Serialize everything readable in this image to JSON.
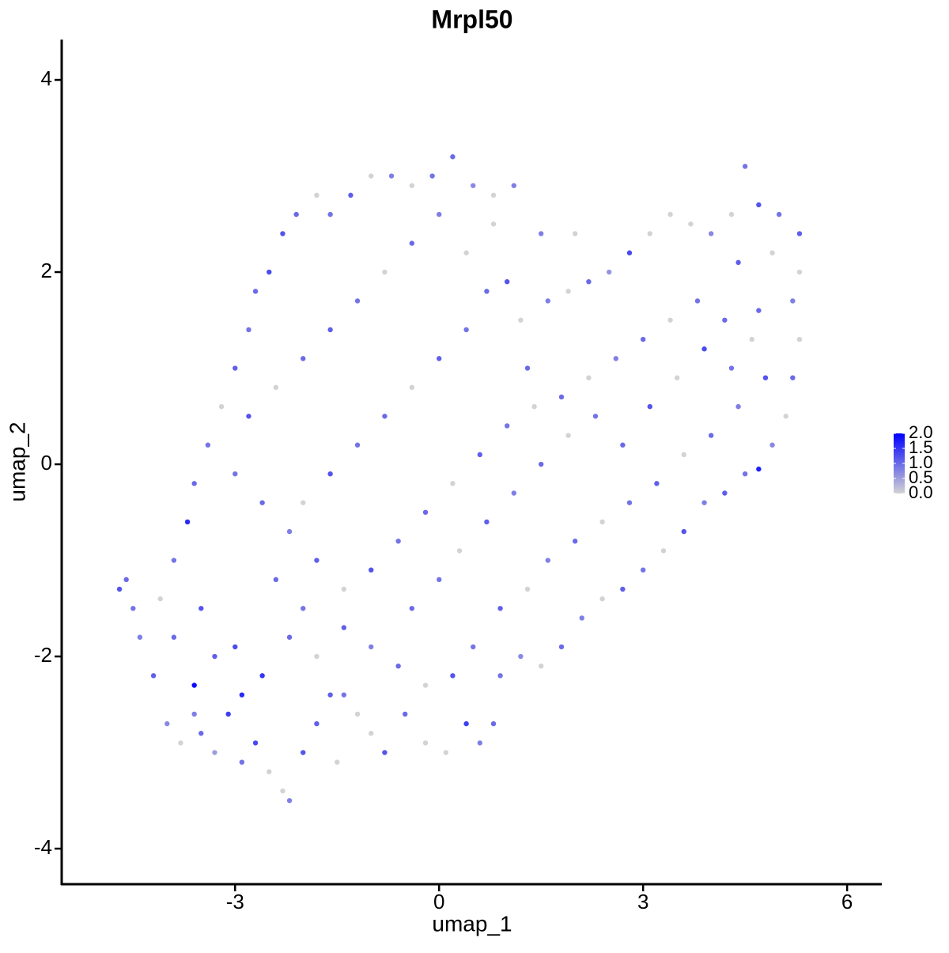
{
  "chart_data": {
    "type": "scatter",
    "title": "Mrpl50",
    "x_label": "umap_1",
    "y_label": "umap_2",
    "xlim": [
      -5.55,
      6.51
    ],
    "ylim": [
      -4.37,
      4.42
    ],
    "xticks": [
      -3,
      0,
      3,
      6
    ],
    "yticks": [
      -4,
      -2,
      0,
      2,
      4
    ],
    "grid": false,
    "color_low": "#D3D3D3",
    "color_high": "#0000FF",
    "clim": [
      0,
      2
    ],
    "colorbar_ticks": [
      {
        "value": 0,
        "label": "0.0"
      },
      0.5,
      {
        "value": 1,
        "label": "1.0"
      },
      1.5,
      {
        "value": 2,
        "label": "2.0"
      }
    ],
    "x": [
      -4.7,
      -4.6,
      -4.5,
      -4.4,
      -4.2,
      -4.0,
      -3.8,
      -3.6,
      -3.5,
      -3.3,
      -3.1,
      -2.9,
      -2.7,
      -2.5,
      -2.3,
      -2.2,
      -2.0,
      -1.8,
      -1.5,
      -1.4,
      -1.0,
      -0.8,
      -0.5,
      -0.2,
      0.1,
      0.4,
      0.6,
      0.8,
      0.9,
      1.2,
      1.5,
      1.8,
      2.1,
      2.4,
      2.7,
      3.0,
      3.3,
      3.6,
      3.9,
      4.2,
      4.5,
      4.7,
      4.9,
      5.1,
      5.2,
      5.3,
      5.2,
      5.3,
      5.3,
      5.0,
      4.7,
      4.5,
      4.3,
      4.0,
      3.7,
      3.4,
      3.1,
      2.8,
      2.5,
      2.2,
      1.9,
      1.6,
      1.2,
      1.0,
      0.8,
      1.1,
      0.8,
      0.5,
      0.2,
      -0.1,
      -0.4,
      -0.7,
      -1.0,
      -1.3,
      -1.6,
      -1.8,
      -2.1,
      -2.3,
      -2.5,
      -2.7,
      -2.8,
      -3.0,
      -3.2,
      -3.4,
      -3.6,
      -3.7,
      -3.9,
      -4.1,
      -3.9,
      -3.5,
      -3.0,
      -2.6,
      -2.2,
      -1.8,
      -1.4,
      -1.0,
      -0.6,
      -0.2,
      0.2,
      0.5,
      0.9,
      1.3,
      1.6,
      2.0,
      2.4,
      2.8,
      3.2,
      3.6,
      4.0,
      4.4,
      4.8,
      4.6,
      4.2,
      3.8,
      3.4,
      3.0,
      2.6,
      2.2,
      1.8,
      1.4,
      1.0,
      0.6,
      0.2,
      -0.2,
      -0.6,
      -1.0,
      -1.4,
      -1.8,
      -2.2,
      -2.6,
      -3.0,
      -2.8,
      -2.4,
      -2.0,
      -1.6,
      -1.2,
      -0.8,
      -0.4,
      0.0,
      0.4,
      0.7,
      0.4,
      0.0,
      -0.4,
      -0.8,
      -1.2,
      -1.6,
      -2.0,
      -2.4,
      -2.0,
      -1.6,
      -1.2,
      -0.4,
      0.0,
      0.3,
      0.7,
      1.1,
      1.5,
      1.9,
      2.3,
      2.7,
      3.1,
      3.5,
      3.9,
      4.3,
      4.7,
      4.9,
      4.4,
      2.0,
      1.5,
      1.3,
      -3.3,
      -2.9,
      -3.6
    ],
    "y": [
      -1.3,
      -1.2,
      -1.5,
      -1.8,
      -2.2,
      -2.7,
      -2.9,
      -2.3,
      -2.8,
      -3.0,
      -2.6,
      -3.1,
      -2.9,
      -3.2,
      -3.4,
      -3.5,
      -3.0,
      -2.7,
      -3.1,
      -2.4,
      -2.8,
      -3.0,
      -2.6,
      -2.9,
      -3.0,
      -2.7,
      -2.9,
      -2.7,
      -2.2,
      -2.0,
      -2.1,
      -1.9,
      -1.6,
      -1.4,
      -1.3,
      -1.1,
      -0.9,
      -0.7,
      -0.4,
      -0.3,
      -0.1,
      -0.05,
      0.2,
      0.5,
      0.9,
      1.3,
      1.7,
      2.0,
      2.4,
      2.6,
      2.7,
      3.1,
      2.6,
      2.4,
      2.5,
      2.6,
      2.4,
      2.2,
      2.0,
      1.9,
      1.8,
      1.7,
      1.5,
      1.9,
      2.5,
      2.9,
      2.8,
      2.9,
      3.2,
      3.0,
      2.9,
      3.0,
      3.0,
      2.8,
      2.6,
      2.8,
      2.6,
      2.4,
      2.0,
      1.8,
      1.4,
      1.0,
      0.6,
      0.2,
      -0.2,
      -0.6,
      -1.0,
      -1.4,
      -1.8,
      -1.5,
      -1.9,
      -2.2,
      -1.8,
      -2.0,
      -1.7,
      -1.9,
      -2.1,
      -2.3,
      -2.2,
      -1.9,
      -1.5,
      -1.3,
      -1.0,
      -0.8,
      -0.6,
      -0.4,
      -0.2,
      0.1,
      0.3,
      0.6,
      0.9,
      1.3,
      1.5,
      1.7,
      1.5,
      1.3,
      1.1,
      0.9,
      0.7,
      0.6,
      0.4,
      0.1,
      -0.2,
      -0.5,
      -0.8,
      -1.1,
      -1.3,
      -1.0,
      -0.7,
      -0.4,
      -0.1,
      0.5,
      0.8,
      1.1,
      1.4,
      1.7,
      2.0,
      2.3,
      2.6,
      2.2,
      1.8,
      1.4,
      1.1,
      0.8,
      0.5,
      0.2,
      -0.1,
      -0.4,
      -1.2,
      -1.5,
      -2.4,
      -2.6,
      -1.5,
      -1.2,
      -0.9,
      -0.6,
      -0.3,
      0.0,
      0.3,
      0.5,
      0.2,
      0.6,
      0.9,
      1.2,
      1.0,
      1.6,
      2.2,
      2.1,
      2.4,
      2.4,
      1.0,
      -2.0,
      -2.4,
      -2.6
    ],
    "values": [
      1.2,
      1.0,
      0.9,
      0.8,
      1.1,
      0.7,
      0,
      1.9,
      1.0,
      0.5,
      1.4,
      0.9,
      1.3,
      0,
      0,
      0.8,
      1.2,
      1.1,
      0,
      0.9,
      0,
      1.2,
      1.0,
      0,
      0,
      1.4,
      0.8,
      1.0,
      0.9,
      0.7,
      0,
      1.0,
      0.8,
      0,
      1.1,
      0.9,
      0,
      1.2,
      0.8,
      1.1,
      0.9,
      1.7,
      0.7,
      0,
      1.0,
      0,
      0.8,
      0,
      1.1,
      0.9,
      1.2,
      0.9,
      0,
      0.7,
      0,
      0,
      0,
      1.3,
      0.6,
      1.0,
      0,
      0.8,
      0,
      1.2,
      0,
      0.8,
      0,
      0.7,
      1.0,
      0.9,
      0,
      0.8,
      0,
      1.1,
      0.9,
      0,
      1.0,
      1.2,
      1.3,
      1.0,
      0.9,
      1.1,
      0,
      0.9,
      1.0,
      1.6,
      0.9,
      0,
      1.0,
      1.2,
      1.3,
      1.5,
      1.0,
      0,
      1.1,
      0.8,
      1.0,
      0,
      1.2,
      0.9,
      1.1,
      0,
      0.8,
      1.0,
      0,
      0.9,
      1.1,
      0,
      1.0,
      0.8,
      1.2,
      0,
      1.0,
      0.9,
      0,
      1.0,
      0.8,
      0,
      1.0,
      0,
      0.9,
      1.1,
      0,
      1.0,
      0.9,
      1.2,
      0,
      1.1,
      0.8,
      1.0,
      0.9,
      1.2,
      0,
      1.0,
      1.1,
      0.9,
      0,
      1.0,
      0.8,
      0,
      1.0,
      0.9,
      1.1,
      0,
      1.0,
      0.9,
      1.2,
      0,
      1.0,
      0.9,
      1.1,
      0,
      1.0,
      0.9,
      0,
      1.1,
      0.8,
      1.0,
      0,
      0.9,
      1.0,
      1.2,
      0,
      1.3,
      0.9,
      1.0,
      0,
      1.1,
      0,
      0.8,
      1.0,
      1.1,
      1.6,
      0.8
    ]
  }
}
